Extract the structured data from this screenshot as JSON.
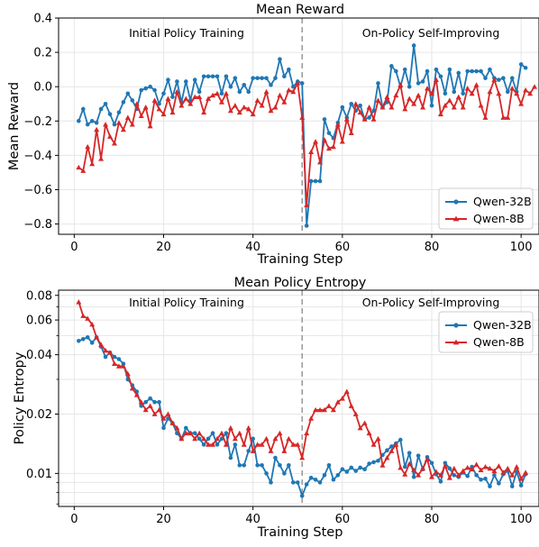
{
  "colors": {
    "series_0": "#1f77b4",
    "series_1": "#d62728",
    "grid": "#e6e6e6",
    "vline": "#999999"
  },
  "chart_data": [
    {
      "type": "line",
      "title": "Mean Reward",
      "xlabel": "Training Step",
      "ylabel": "Mean Reward",
      "xlim": [
        -3.5,
        104
      ],
      "ylim": [
        -0.86,
        0.4
      ],
      "x_ticks": [
        0,
        20,
        40,
        60,
        80,
        100
      ],
      "y_ticks": [
        -0.8,
        -0.6,
        -0.4,
        -0.2,
        0.0,
        0.2,
        0.4
      ],
      "y_tick_labels": [
        "−0.8",
        "−0.6",
        "−0.4",
        "−0.2",
        "0.0",
        "0.2",
        "0.4"
      ],
      "grid": true,
      "legend_position": "lower right",
      "annotations": [
        "Initial Policy Training",
        "On-Policy Self-Improving"
      ],
      "divider_x": 51,
      "series": [
        {
          "name": "Qwen-32B",
          "marker": "circle",
          "values": [
            -0.2,
            -0.13,
            -0.22,
            -0.2,
            -0.21,
            -0.13,
            -0.1,
            -0.16,
            -0.22,
            -0.15,
            -0.09,
            -0.04,
            -0.08,
            -0.13,
            -0.02,
            -0.01,
            0.0,
            -0.02,
            -0.1,
            -0.04,
            0.04,
            -0.06,
            0.03,
            -0.09,
            0.03,
            -0.08,
            0.04,
            -0.03,
            0.06,
            0.06,
            0.06,
            0.06,
            -0.04,
            0.06,
            0.0,
            0.05,
            -0.03,
            0.01,
            -0.03,
            0.05,
            0.05,
            0.05,
            0.05,
            0.01,
            0.05,
            0.16,
            0.06,
            0.1,
            0.0,
            0.03,
            0.02,
            -0.81,
            -0.55,
            -0.55,
            -0.55,
            -0.19,
            -0.27,
            -0.3,
            -0.21,
            -0.12,
            -0.18,
            -0.1,
            -0.14,
            -0.11,
            -0.19,
            -0.18,
            -0.14,
            0.02,
            -0.12,
            -0.09,
            0.12,
            0.09,
            0.0,
            0.1,
            0.0,
            0.24,
            0.02,
            0.03,
            0.09,
            -0.11,
            0.1,
            0.06,
            -0.04,
            0.1,
            -0.03,
            0.08,
            -0.04,
            0.09,
            0.09,
            0.09,
            0.09,
            0.05,
            0.1,
            0.05,
            0.04,
            0.05,
            -0.03,
            0.05,
            -0.03,
            0.13,
            0.11
          ]
        },
        {
          "name": "Qwen-8B",
          "marker": "triangle",
          "values": [
            -0.47,
            -0.49,
            -0.35,
            -0.45,
            -0.25,
            -0.42,
            -0.22,
            -0.29,
            -0.33,
            -0.21,
            -0.25,
            -0.18,
            -0.22,
            -0.1,
            -0.17,
            -0.12,
            -0.23,
            -0.08,
            -0.13,
            -0.16,
            -0.07,
            -0.15,
            -0.03,
            -0.11,
            -0.07,
            -0.1,
            -0.06,
            -0.06,
            -0.15,
            -0.07,
            -0.05,
            -0.04,
            -0.09,
            -0.04,
            -0.14,
            -0.11,
            -0.15,
            -0.12,
            -0.13,
            -0.16,
            -0.08,
            -0.11,
            -0.03,
            -0.14,
            -0.12,
            -0.05,
            -0.09,
            -0.02,
            -0.03,
            0.02,
            -0.18,
            -0.69,
            -0.38,
            -0.32,
            -0.44,
            -0.31,
            -0.36,
            -0.35,
            -0.22,
            -0.32,
            -0.19,
            -0.27,
            -0.1,
            -0.15,
            -0.19,
            -0.12,
            -0.19,
            -0.08,
            -0.12,
            -0.06,
            -0.12,
            -0.05,
            0.01,
            -0.13,
            -0.07,
            -0.1,
            -0.05,
            -0.12,
            -0.01,
            -0.04,
            0.04,
            -0.16,
            -0.11,
            -0.08,
            -0.12,
            -0.06,
            -0.12,
            -0.01,
            -0.04,
            0.01,
            -0.11,
            -0.18,
            -0.03,
            0.04,
            -0.04,
            -0.18,
            -0.18,
            -0.01,
            -0.04,
            -0.1,
            -0.02,
            -0.04,
            0.0
          ]
        }
      ]
    },
    {
      "type": "line",
      "title": "Mean Policy Entropy",
      "xlabel": "Training Step",
      "ylabel": "Policy Entropy",
      "xlim": [
        -3.5,
        104
      ],
      "ylim": [
        0.0068,
        0.085
      ],
      "y_scale": "log",
      "x_ticks": [
        0,
        20,
        40,
        60,
        80,
        100
      ],
      "y_ticks": [
        0.01,
        0.02,
        0.04,
        0.06,
        0.08
      ],
      "y_tick_labels": [
        "0.01",
        "0.02",
        "0.04",
        "0.06",
        "0.08"
      ],
      "grid": true,
      "legend_position": "upper right",
      "annotations": [
        "Initial Policy Training",
        "On-Policy Self-Improving"
      ],
      "divider_x": 51,
      "series": [
        {
          "name": "Qwen-32B",
          "marker": "circle",
          "values": [
            0.047,
            0.048,
            0.049,
            0.046,
            0.049,
            0.044,
            0.039,
            0.041,
            0.039,
            0.038,
            0.036,
            0.03,
            0.028,
            0.026,
            0.022,
            0.023,
            0.024,
            0.023,
            0.023,
            0.017,
            0.019,
            0.018,
            0.016,
            0.015,
            0.017,
            0.016,
            0.016,
            0.015,
            0.014,
            0.015,
            0.016,
            0.014,
            0.015,
            0.016,
            0.012,
            0.014,
            0.011,
            0.011,
            0.013,
            0.015,
            0.011,
            0.011,
            0.01,
            0.009,
            0.012,
            0.011,
            0.01,
            0.011,
            0.009,
            0.009,
            0.0077,
            0.0088,
            0.0095,
            0.0093,
            0.009,
            0.0098,
            0.011,
            0.0093,
            0.0098,
            0.0105,
            0.0102,
            0.0107,
            0.0103,
            0.0107,
            0.0105,
            0.0112,
            0.0114,
            0.0116,
            0.0124,
            0.0131,
            0.0137,
            0.0142,
            0.0148,
            0.0108,
            0.0127,
            0.0096,
            0.0123,
            0.0105,
            0.0121,
            0.0113,
            0.0099,
            0.0091,
            0.0113,
            0.0106,
            0.0098,
            0.0096,
            0.0101,
            0.0097,
            0.0108,
            0.0098,
            0.0093,
            0.0094,
            0.0086,
            0.0098,
            0.0089,
            0.0099,
            0.0103,
            0.0086,
            0.0102,
            0.0087,
            0.0099
          ]
        },
        {
          "name": "Qwen-8B",
          "marker": "triangle",
          "values": [
            0.074,
            0.063,
            0.061,
            0.057,
            0.049,
            0.045,
            0.042,
            0.041,
            0.036,
            0.035,
            0.035,
            0.032,
            0.027,
            0.025,
            0.023,
            0.021,
            0.022,
            0.02,
            0.021,
            0.019,
            0.02,
            0.018,
            0.017,
            0.015,
            0.016,
            0.016,
            0.015,
            0.016,
            0.015,
            0.014,
            0.014,
            0.015,
            0.016,
            0.014,
            0.017,
            0.015,
            0.016,
            0.014,
            0.017,
            0.013,
            0.014,
            0.014,
            0.015,
            0.013,
            0.015,
            0.016,
            0.013,
            0.015,
            0.014,
            0.014,
            0.012,
            0.016,
            0.019,
            0.021,
            0.021,
            0.021,
            0.022,
            0.021,
            0.023,
            0.024,
            0.026,
            0.022,
            0.02,
            0.017,
            0.018,
            0.016,
            0.014,
            0.015,
            0.011,
            0.012,
            0.013,
            0.014,
            0.0107,
            0.0099,
            0.0112,
            0.0104,
            0.0098,
            0.0106,
            0.0118,
            0.0096,
            0.0102,
            0.0098,
            0.0109,
            0.0095,
            0.0106,
            0.0098,
            0.0103,
            0.0107,
            0.0105,
            0.0111,
            0.0104,
            0.0108,
            0.0106,
            0.0103,
            0.0109,
            0.0101,
            0.0106,
            0.0098,
            0.0108,
            0.0094,
            0.0101
          ]
        }
      ]
    }
  ]
}
